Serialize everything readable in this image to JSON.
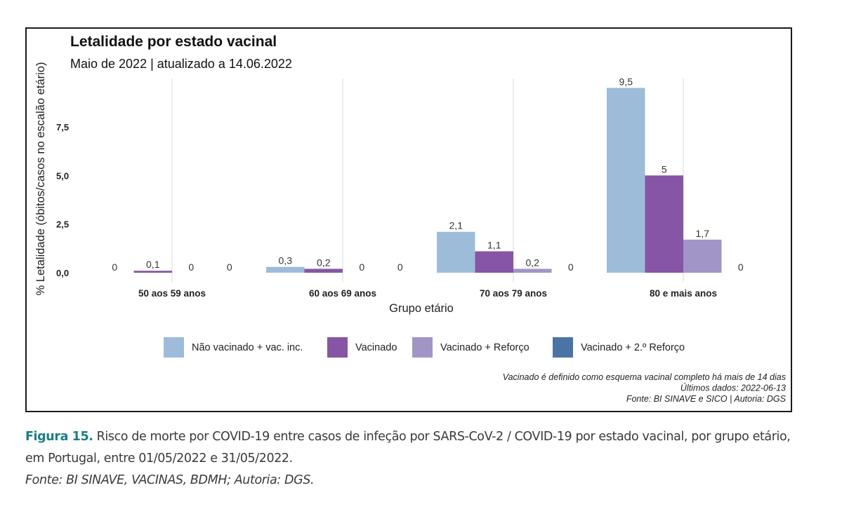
{
  "chart_data": {
    "type": "bar",
    "title": "Letalidade por estado vacinal",
    "subtitle": "Maio de 2022 | atualizado a 14.06.2022",
    "xlabel": "Grupo etário",
    "ylabel": "% Letalidade (óbitos/casos no escalão etário)",
    "ylim": [
      0,
      9.5
    ],
    "yticks": [
      {
        "value": 0,
        "label": "0,0"
      },
      {
        "value": 2.5,
        "label": "2,5"
      },
      {
        "value": 5,
        "label": "5,0"
      },
      {
        "value": 7.5,
        "label": "7,5"
      }
    ],
    "grid": "vertical lines at category centers",
    "legend_position": "bottom",
    "categories": [
      "50 aos 59 anos",
      "60 aos 69 anos",
      "70 aos 79 anos",
      "80 e mais anos"
    ],
    "series": [
      {
        "name": "Não vacinado + vac. inc.",
        "color": "#9dbcd9",
        "values": [
          0,
          0.3,
          2.1,
          9.5
        ],
        "labels": [
          "0",
          "0,3",
          "2,1",
          "9,5"
        ]
      },
      {
        "name": "Vacinado",
        "color": "#8655a5",
        "values": [
          0.1,
          0.2,
          1.1,
          5
        ],
        "labels": [
          "0,1",
          "0,2",
          "1,1",
          "5"
        ]
      },
      {
        "name": "Vacinado + Reforço",
        "color": "#a195c5",
        "values": [
          0,
          0,
          0.2,
          1.7
        ],
        "labels": [
          "0",
          "0",
          "0,2",
          "1,7"
        ]
      },
      {
        "name": "Vacinado + 2.º Reforço",
        "color": "#4a74a6",
        "values": [
          0,
          0,
          0,
          0
        ],
        "labels": [
          "0",
          "0",
          "0",
          "0"
        ]
      }
    ],
    "notes": [
      "Vacinado é definido como esquema vacinal completo há mais de 14 dias",
      "Últimos dados: 2022-06-13",
      "Fonte: BI SINAVE e SICO | Autoria: DGS"
    ]
  },
  "caption": {
    "figure_label": "Figura 15.",
    "text": " Risco de morte por COVID-19 entre casos de infeção por SARS-CoV-2 / COVID-19 por estado vacinal, por grupo etário, em Portugal, entre 01/05/2022 e 31/05/2022.",
    "source": "Fonte: BI SINAVE, VACINAS, BDMH; Autoria: DGS."
  }
}
